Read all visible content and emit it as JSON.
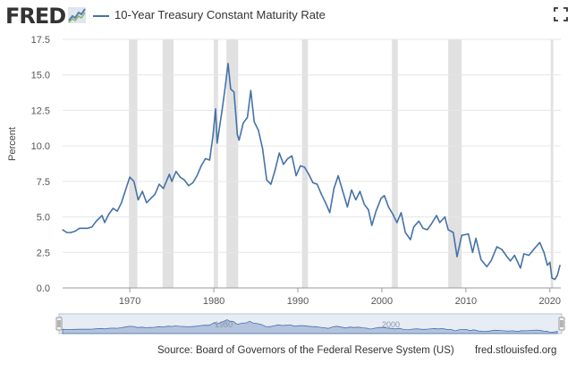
{
  "header": {
    "logo_text": "FRED",
    "logo_icon": "fred-graph-icon",
    "title": "10-Year Treasury Constant Maturity Rate",
    "expand_icon": "expand-icon"
  },
  "colors": {
    "series": "#4572a7",
    "recession": "#e1e1e1",
    "grid": "#e6e6e6",
    "navigator_fill": "#8aa3c8",
    "navigator_bg": "#e7ecf5"
  },
  "chart_data": {
    "type": "line",
    "title": "10-Year Treasury Constant Maturity Rate",
    "xlabel": "",
    "ylabel": "Percent",
    "xlim": [
      1962,
      2021.3
    ],
    "ylim": [
      0,
      17.5
    ],
    "x_ticks": [
      "1970",
      "1980",
      "1990",
      "2000",
      "2010",
      "2020"
    ],
    "y_ticks": [
      "0.0",
      "2.5",
      "5.0",
      "7.5",
      "10.0",
      "12.5",
      "15.0",
      "17.5"
    ],
    "grid": true,
    "recessions": [
      [
        1969.9,
        1970.9
      ],
      [
        1973.9,
        1975.2
      ],
      [
        1980.0,
        1980.5
      ],
      [
        1981.5,
        1982.9
      ],
      [
        1990.5,
        1991.2
      ],
      [
        2001.2,
        2001.9
      ],
      [
        2007.9,
        2009.5
      ],
      [
        2020.1,
        2020.4
      ]
    ],
    "series": [
      {
        "values": [
          [
            1962.0,
            4.1
          ],
          [
            1962.5,
            3.9
          ],
          [
            1963.0,
            3.9
          ],
          [
            1963.5,
            4.0
          ],
          [
            1964.0,
            4.2
          ],
          [
            1965.0,
            4.2
          ],
          [
            1965.5,
            4.3
          ],
          [
            1966.0,
            4.7
          ],
          [
            1966.7,
            5.1
          ],
          [
            1967.0,
            4.6
          ],
          [
            1967.5,
            5.2
          ],
          [
            1968.0,
            5.6
          ],
          [
            1968.5,
            5.4
          ],
          [
            1969.0,
            6.0
          ],
          [
            1969.5,
            6.9
          ],
          [
            1970.0,
            7.8
          ],
          [
            1970.5,
            7.5
          ],
          [
            1971.0,
            6.2
          ],
          [
            1971.5,
            6.8
          ],
          [
            1972.0,
            6.0
          ],
          [
            1972.5,
            6.3
          ],
          [
            1973.0,
            6.6
          ],
          [
            1973.5,
            7.3
          ],
          [
            1974.0,
            7.0
          ],
          [
            1974.7,
            8.0
          ],
          [
            1975.0,
            7.5
          ],
          [
            1975.5,
            8.2
          ],
          [
            1976.0,
            7.8
          ],
          [
            1976.5,
            7.6
          ],
          [
            1977.0,
            7.2
          ],
          [
            1977.5,
            7.4
          ],
          [
            1978.0,
            7.9
          ],
          [
            1978.5,
            8.6
          ],
          [
            1979.0,
            9.1
          ],
          [
            1979.5,
            9.0
          ],
          [
            1979.9,
            10.7
          ],
          [
            1980.2,
            12.6
          ],
          [
            1980.4,
            10.2
          ],
          [
            1980.6,
            11.0
          ],
          [
            1981.0,
            12.6
          ],
          [
            1981.3,
            13.9
          ],
          [
            1981.7,
            15.8
          ],
          [
            1982.0,
            14.0
          ],
          [
            1982.4,
            13.8
          ],
          [
            1982.8,
            10.8
          ],
          [
            1983.0,
            10.4
          ],
          [
            1983.5,
            11.6
          ],
          [
            1984.0,
            12.0
          ],
          [
            1984.4,
            13.9
          ],
          [
            1984.8,
            11.7
          ],
          [
            1985.3,
            11.1
          ],
          [
            1985.8,
            9.8
          ],
          [
            1986.3,
            7.6
          ],
          [
            1986.8,
            7.3
          ],
          [
            1987.3,
            8.3
          ],
          [
            1987.8,
            9.5
          ],
          [
            1988.3,
            8.7
          ],
          [
            1988.8,
            9.1
          ],
          [
            1989.3,
            9.3
          ],
          [
            1989.8,
            7.9
          ],
          [
            1990.3,
            8.6
          ],
          [
            1990.8,
            8.5
          ],
          [
            1991.3,
            8.0
          ],
          [
            1991.8,
            7.4
          ],
          [
            1992.3,
            7.3
          ],
          [
            1992.8,
            6.6
          ],
          [
            1993.3,
            6.0
          ],
          [
            1993.8,
            5.3
          ],
          [
            1994.3,
            7.0
          ],
          [
            1994.8,
            7.9
          ],
          [
            1995.3,
            6.9
          ],
          [
            1995.9,
            5.7
          ],
          [
            1996.4,
            6.9
          ],
          [
            1996.9,
            6.2
          ],
          [
            1997.4,
            6.8
          ],
          [
            1997.9,
            5.9
          ],
          [
            1998.4,
            5.5
          ],
          [
            1998.8,
            4.4
          ],
          [
            1999.3,
            5.4
          ],
          [
            1999.9,
            6.3
          ],
          [
            2000.3,
            6.5
          ],
          [
            2000.8,
            5.7
          ],
          [
            2001.3,
            5.2
          ],
          [
            2001.8,
            4.6
          ],
          [
            2002.3,
            5.3
          ],
          [
            2002.8,
            3.9
          ],
          [
            2003.4,
            3.4
          ],
          [
            2003.8,
            4.3
          ],
          [
            2004.4,
            4.7
          ],
          [
            2004.9,
            4.2
          ],
          [
            2005.4,
            4.1
          ],
          [
            2005.9,
            4.5
          ],
          [
            2006.5,
            5.1
          ],
          [
            2006.9,
            4.6
          ],
          [
            2007.5,
            5.0
          ],
          [
            2007.9,
            4.1
          ],
          [
            2008.5,
            3.9
          ],
          [
            2008.95,
            2.2
          ],
          [
            2009.5,
            3.7
          ],
          [
            2010.3,
            3.8
          ],
          [
            2010.8,
            2.5
          ],
          [
            2011.2,
            3.5
          ],
          [
            2011.8,
            2.0
          ],
          [
            2012.5,
            1.5
          ],
          [
            2013.0,
            1.9
          ],
          [
            2013.7,
            2.9
          ],
          [
            2014.3,
            2.7
          ],
          [
            2014.9,
            2.2
          ],
          [
            2015.3,
            1.9
          ],
          [
            2015.8,
            2.3
          ],
          [
            2016.5,
            1.4
          ],
          [
            2016.9,
            2.4
          ],
          [
            2017.5,
            2.3
          ],
          [
            2018.2,
            2.8
          ],
          [
            2018.8,
            3.2
          ],
          [
            2019.3,
            2.5
          ],
          [
            2019.7,
            1.6
          ],
          [
            2020.0,
            1.8
          ],
          [
            2020.25,
            0.7
          ],
          [
            2020.6,
            0.6
          ],
          [
            2020.9,
            0.9
          ],
          [
            2021.2,
            1.6
          ]
        ]
      }
    ]
  },
  "navigator": {
    "labels": [
      "1980",
      "2000"
    ]
  },
  "footer": {
    "source": "Source: Board of Governors of the Federal Reserve System (US)",
    "site": "fred.stlouisfed.org"
  }
}
